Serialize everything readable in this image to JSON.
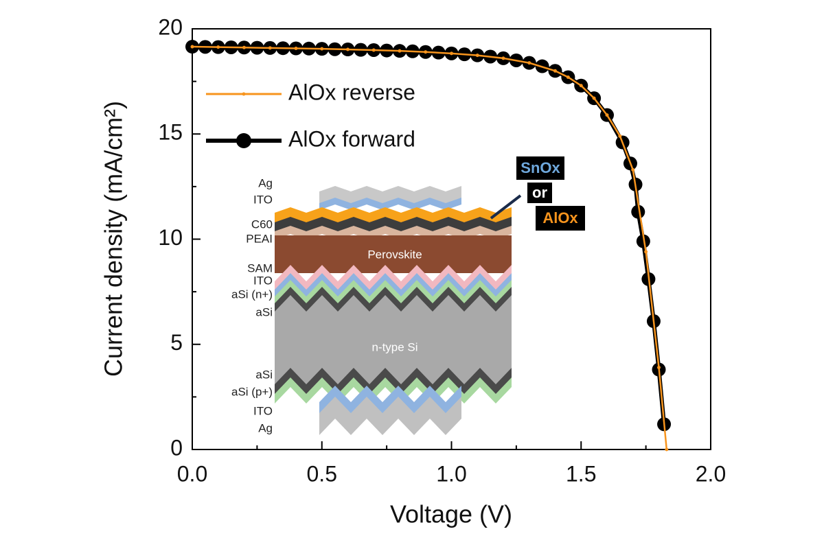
{
  "chart_data": {
    "type": "line",
    "x_label": "Voltage (V)",
    "y_label": "Current density (mA/cm²)",
    "xlim": [
      0,
      2
    ],
    "ylim": [
      0,
      20
    ],
    "xticks": [
      {
        "value": 0,
        "label": "0.0"
      },
      0.5,
      {
        "value": 1,
        "label": "1.0"
      },
      1.5,
      {
        "value": 2,
        "label": "2.0"
      }
    ],
    "yticks": [
      0,
      5,
      10,
      15,
      20
    ],
    "xminor_ticks": [
      0.25,
      0.75,
      1.25,
      1.75
    ],
    "yminor_ticks": [
      2.5,
      7.5,
      12.5,
      17.5
    ],
    "legend": "upper left",
    "series": [
      {
        "name": "AlOx reverse",
        "color": "#f7941d",
        "x": [
          0,
          0.1,
          0.2,
          0.3,
          0.4,
          0.5,
          0.6,
          0.7,
          0.8,
          0.9,
          1.0,
          1.1,
          1.2,
          1.3,
          1.4,
          1.45,
          1.5,
          1.55,
          1.6,
          1.65,
          1.7,
          1.75,
          1.8,
          1.83
        ],
        "values": [
          19.15,
          19.13,
          19.11,
          19.09,
          19.07,
          19.05,
          19.02,
          18.99,
          18.95,
          18.9,
          18.83,
          18.74,
          18.6,
          18.38,
          18.0,
          17.7,
          17.3,
          16.7,
          15.9,
          14.9,
          13.3,
          9.4,
          3.9,
          0
        ]
      },
      {
        "name": "AlOx forward",
        "color": "#000000",
        "x": [
          0,
          0.05,
          0.1,
          0.15,
          0.2,
          0.25,
          0.3,
          0.35,
          0.4,
          0.45,
          0.5,
          0.55,
          0.6,
          0.65,
          0.7,
          0.75,
          0.8,
          0.85,
          0.9,
          0.95,
          1.0,
          1.05,
          1.1,
          1.15,
          1.2,
          1.25,
          1.3,
          1.35,
          1.4,
          1.45,
          1.5,
          1.55,
          1.6,
          1.66,
          1.69,
          1.71,
          1.72,
          1.74,
          1.76,
          1.78,
          1.8,
          1.82
        ],
        "values": [
          19.15,
          19.14,
          19.13,
          19.12,
          19.11,
          19.1,
          19.09,
          19.08,
          19.07,
          19.06,
          19.05,
          19.03,
          19.02,
          19.0,
          18.99,
          18.97,
          18.95,
          18.93,
          18.9,
          18.87,
          18.83,
          18.79,
          18.74,
          18.68,
          18.6,
          18.5,
          18.38,
          18.22,
          18.0,
          17.7,
          17.3,
          16.7,
          15.9,
          14.6,
          13.6,
          12.6,
          11.3,
          9.9,
          8.1,
          6.1,
          3.8,
          1.2
        ]
      }
    ],
    "inset_labels": [
      "Ag",
      "ITO",
      "C60",
      "PEAI",
      "SAM",
      "ITO",
      "aSi (n+)",
      "aSi",
      "aSi",
      "aSi (p+)",
      "ITO",
      "Ag"
    ],
    "inset_layers": [
      "Perovskite",
      "n-type Si"
    ],
    "callout": [
      "SnOx",
      "or",
      "AlOx"
    ]
  }
}
